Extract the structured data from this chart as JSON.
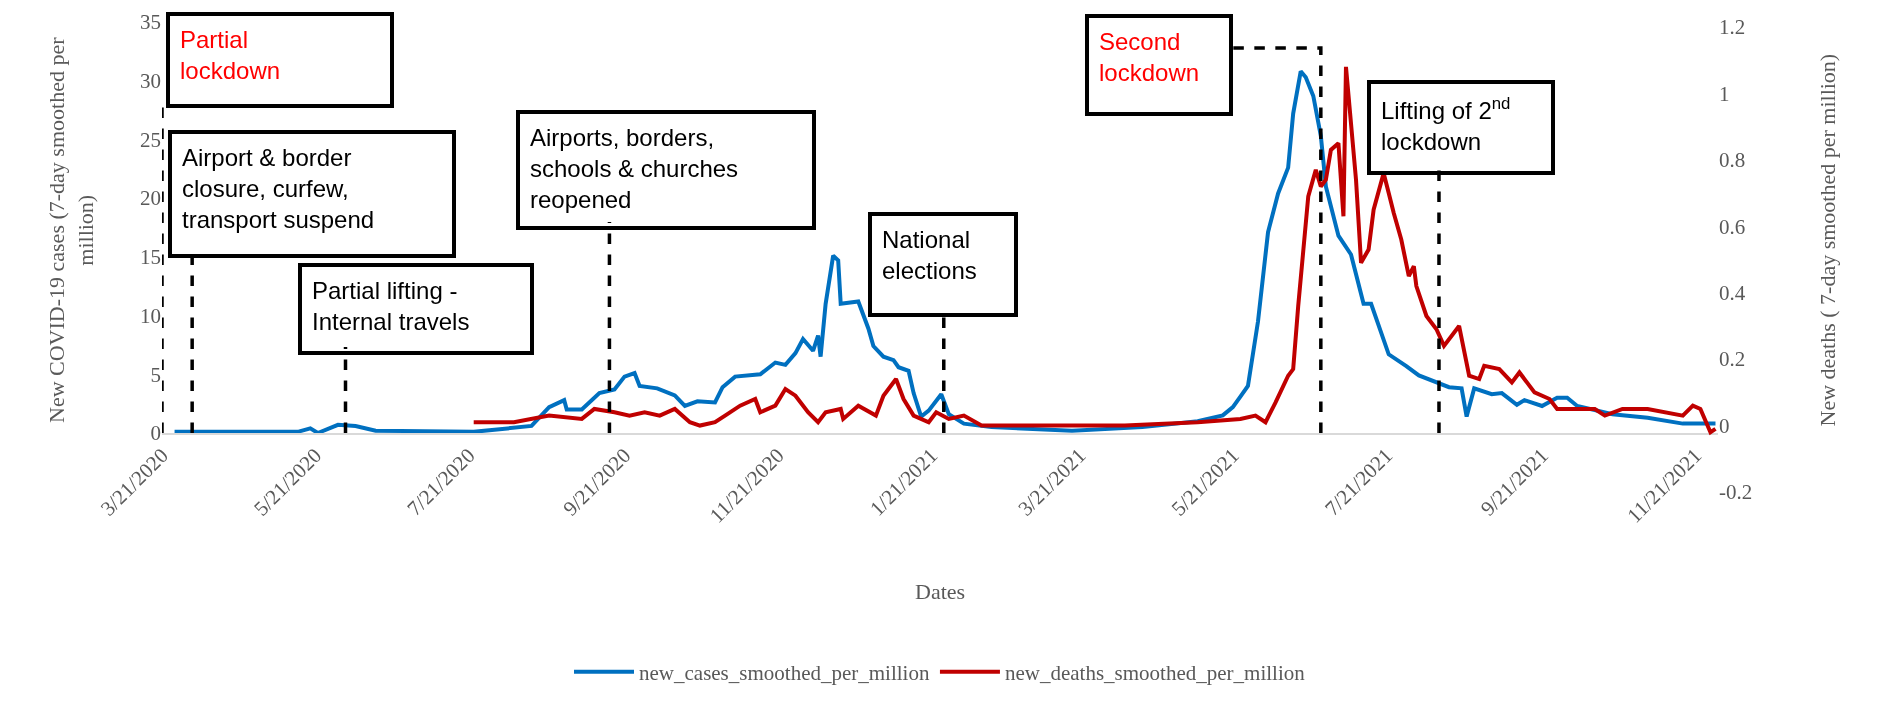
{
  "chart_data": {
    "type": "line",
    "xlabel": "Dates",
    "ylabel": "New COVID-19 cases (7-day smoothed per million)",
    "y2label": "New deaths ( 7-day smoothed per million)",
    "xlim": [
      "2020-03-21",
      "2021-11-30"
    ],
    "xticks": [
      {
        "value": "2020-03-21",
        "label": "3/21/2020"
      },
      {
        "value": "2020-05-21",
        "label": "5/21/2020"
      },
      {
        "value": "2020-07-21",
        "label": "7/21/2020"
      },
      {
        "value": "2020-09-21",
        "label": "9/21/2020"
      },
      {
        "value": "2020-11-21",
        "label": "11/21/2020"
      },
      {
        "value": "2021-01-21",
        "label": "1/21/2021"
      },
      {
        "value": "2021-03-21",
        "label": "3/21/2021"
      },
      {
        "value": "2021-05-21",
        "label": "5/21/2021"
      },
      {
        "value": "2021-07-21",
        "label": "7/21/2021"
      },
      {
        "value": "2021-09-21",
        "label": "9/21/2021"
      },
      {
        "value": "2021-11-21",
        "label": "11/21/2021"
      }
    ],
    "ylim": [
      0,
      35
    ],
    "yticks": [
      0,
      5,
      10,
      15,
      20,
      25,
      30,
      35
    ],
    "y2lim": [
      -0.2,
      1.2
    ],
    "y2ticks": [
      -0.2,
      0,
      0.2,
      0.4,
      0.6,
      0.8,
      1,
      1.2
    ],
    "legend": "bottom",
    "marker": "none",
    "line_style": "solid",
    "series": [
      {
        "name": "new_cases_smoothed_per_million",
        "color": "#0070c0",
        "x": [
          "2020-03-26",
          "2020-05-14",
          "2020-05-19",
          "2020-05-22",
          "2020-05-30",
          "2020-06-06",
          "2020-06-14",
          "2020-07-23",
          "2020-08-15",
          "2020-08-22",
          "2020-08-28",
          "2020-08-29",
          "2020-09-04",
          "2020-09-11",
          "2020-09-17",
          "2020-09-21",
          "2020-09-25",
          "2020-09-27",
          "2020-10-04",
          "2020-10-11",
          "2020-10-15",
          "2020-10-20",
          "2020-10-27",
          "2020-10-30",
          "2020-11-04",
          "2020-11-14",
          "2020-11-20",
          "2020-11-24",
          "2020-11-28",
          "2020-12-01",
          "2020-12-05",
          "2020-12-07",
          "2020-12-08",
          "2020-12-10",
          "2020-12-13",
          "2020-12-15",
          "2020-12-16",
          "2020-12-23",
          "2020-12-27",
          "2020-12-29",
          "2021-01-02",
          "2021-01-06",
          "2021-01-08",
          "2021-01-12",
          "2021-01-14",
          "2021-01-17",
          "2021-01-20",
          "2021-01-25",
          "2021-01-28",
          "2021-02-03",
          "2021-02-14",
          "2021-03-18",
          "2021-04-15",
          "2021-05-07",
          "2021-05-17",
          "2021-05-21",
          "2021-05-24",
          "2021-05-27",
          "2021-05-31",
          "2021-06-04",
          "2021-06-08",
          "2021-06-12",
          "2021-06-14",
          "2021-06-17",
          "2021-06-19",
          "2021-06-22",
          "2021-06-25",
          "2021-06-27",
          "2021-07-02",
          "2021-07-07",
          "2021-07-12",
          "2021-07-15",
          "2021-07-22",
          "2021-07-29",
          "2021-08-03",
          "2021-08-15",
          "2021-08-20",
          "2021-08-22",
          "2021-08-25",
          "2021-09-01",
          "2021-09-05",
          "2021-09-11",
          "2021-09-14",
          "2021-09-21",
          "2021-09-27",
          "2021-10-01",
          "2021-10-05",
          "2021-10-19",
          "2021-11-02",
          "2021-11-16",
          "2021-11-29"
        ],
        "values": [
          0.1,
          0.1,
          0.4,
          0.0,
          0.7,
          0.6,
          0.2,
          0.1,
          0.6,
          2.2,
          2.8,
          2.0,
          2.0,
          3.4,
          3.7,
          4.8,
          5.1,
          4.0,
          3.8,
          3.2,
          2.3,
          2.7,
          2.6,
          3.9,
          4.8,
          5.0,
          6.0,
          5.8,
          6.8,
          8.0,
          7.0,
          8.3,
          6.5,
          11.0,
          15.1,
          14.7,
          11.0,
          11.2,
          8.9,
          7.4,
          6.5,
          6.2,
          5.6,
          5.3,
          3.4,
          1.4,
          1.9,
          3.3,
          1.6,
          0.8,
          0.5,
          0.2,
          0.5,
          1.0,
          1.5,
          2.2,
          3.1,
          4.0,
          9.5,
          17.1,
          20.4,
          22.6,
          27.2,
          30.8,
          30.3,
          28.7,
          25.3,
          21.0,
          16.8,
          15.2,
          11.0,
          11.0,
          6.7,
          5.7,
          4.9,
          3.9,
          3.8,
          1.4,
          3.8,
          3.3,
          3.4,
          2.4,
          2.8,
          2.3,
          3.0,
          3.0,
          2.3,
          1.6,
          1.3,
          0.8,
          0.8
        ]
      },
      {
        "name": "new_deaths_smoothed_per_million",
        "color": "#c00000",
        "axis": "y2",
        "x": [
          "2020-07-23",
          "2020-08-08",
          "2020-08-22",
          "2020-09-04",
          "2020-09-09",
          "2020-09-17",
          "2020-09-23",
          "2020-09-29",
          "2020-10-05",
          "2020-10-11",
          "2020-10-17",
          "2020-10-21",
          "2020-10-27",
          "2020-10-31",
          "2020-11-06",
          "2020-11-12",
          "2020-11-14",
          "2020-11-20",
          "2020-11-24",
          "2020-11-28",
          "2020-12-03",
          "2020-12-07",
          "2020-12-10",
          "2020-12-16",
          "2020-12-17",
          "2020-12-23",
          "2020-12-30",
          "2021-01-02",
          "2021-01-07",
          "2021-01-10",
          "2021-01-14",
          "2021-01-20",
          "2021-01-23",
          "2021-01-28",
          "2021-02-03",
          "2021-02-10",
          "2021-03-03",
          "2021-04-08",
          "2021-05-07",
          "2021-05-24",
          "2021-05-30",
          "2021-06-03",
          "2021-06-07",
          "2021-06-12",
          "2021-06-14",
          "2021-06-16",
          "2021-06-20",
          "2021-06-23",
          "2021-06-25",
          "2021-06-27",
          "2021-06-29",
          "2021-07-02",
          "2021-07-04",
          "2021-07-05",
          "2021-07-09",
          "2021-07-11",
          "2021-07-14",
          "2021-07-16",
          "2021-07-20",
          "2021-07-22",
          "2021-07-24",
          "2021-07-27",
          "2021-07-30",
          "2021-08-01",
          "2021-08-02",
          "2021-08-06",
          "2021-08-10",
          "2021-08-13",
          "2021-08-19",
          "2021-08-23",
          "2021-08-27",
          "2021-08-29",
          "2021-09-04",
          "2021-09-09",
          "2021-09-12",
          "2021-09-18",
          "2021-09-24",
          "2021-09-27",
          "2021-10-12",
          "2021-10-16",
          "2021-10-23",
          "2021-11-02",
          "2021-11-16",
          "2021-11-20",
          "2021-11-23",
          "2021-11-27",
          "2021-11-29"
        ],
        "values": [
          0.01,
          0.01,
          0.03,
          0.02,
          0.05,
          0.04,
          0.03,
          0.04,
          0.03,
          0.05,
          0.01,
          0.0,
          0.01,
          0.03,
          0.06,
          0.08,
          0.04,
          0.06,
          0.11,
          0.09,
          0.04,
          0.01,
          0.04,
          0.05,
          0.02,
          0.06,
          0.03,
          0.09,
          0.14,
          0.08,
          0.03,
          0.01,
          0.04,
          0.02,
          0.03,
          0.0,
          0.0,
          0.0,
          0.01,
          0.02,
          0.03,
          0.01,
          0.07,
          0.15,
          0.17,
          0.36,
          0.69,
          0.77,
          0.72,
          0.74,
          0.83,
          0.85,
          0.63,
          1.08,
          0.74,
          0.49,
          0.53,
          0.65,
          0.76,
          0.7,
          0.64,
          0.56,
          0.45,
          0.48,
          0.42,
          0.33,
          0.29,
          0.24,
          0.3,
          0.15,
          0.14,
          0.18,
          0.17,
          0.13,
          0.16,
          0.1,
          0.08,
          0.05,
          0.05,
          0.03,
          0.05,
          0.05,
          0.03,
          0.06,
          0.05,
          -0.02,
          -0.01
        ]
      }
    ],
    "ref_lines": [
      {
        "axis": "x",
        "value": "2020-03-21",
        "label": "Partial lockdown",
        "color": "#000000",
        "line_style": "dashed"
      },
      {
        "axis": "x",
        "value": "2020-04-02",
        "label": "Airport & border closure, curfew, transport suspend",
        "color": "#000000",
        "line_style": "dashed"
      },
      {
        "axis": "x",
        "value": "2020-06-02",
        "label": "Partial lifting - Internal travels",
        "color": "#000000",
        "line_style": "dashed"
      },
      {
        "axis": "x",
        "value": "2020-09-15",
        "label": "Airports, borders, schools & churches reopened",
        "color": "#000000",
        "line_style": "dashed"
      },
      {
        "axis": "x",
        "value": "2021-01-26",
        "label": "National elections",
        "color": "#000000",
        "line_style": "dashed"
      },
      {
        "axis": "x",
        "value": "2021-06-25",
        "label": "Second lockdown",
        "color": "#000000",
        "line_style": "dashed"
      },
      {
        "axis": "x",
        "value": "2021-08-11",
        "label": "Lifting of 2$^{nd}$ lockdown",
        "color": "#000000",
        "line_style": "dashed"
      }
    ]
  }
}
